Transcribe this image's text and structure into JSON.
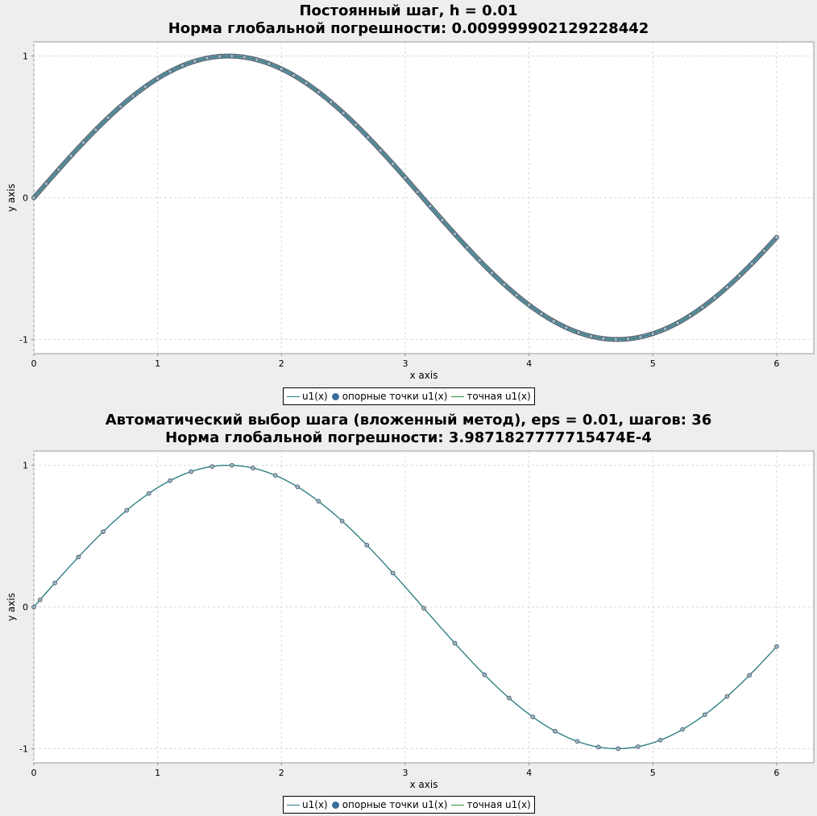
{
  "chart_data": [
    {
      "type": "line",
      "title": "Постоянный шаг, h = 0.01",
      "subtitle": "Норма глобальной погрешности: 0.009999902129228442",
      "xlabel": "x axis",
      "ylabel": "y axis",
      "xlim": [
        0,
        6.3
      ],
      "ylim": [
        -1.1,
        1.1
      ],
      "xticks": [
        0,
        1,
        2,
        3,
        4,
        5,
        6
      ],
      "yticks": [
        -1,
        0,
        1
      ],
      "grid": true,
      "legend_position": "bottom-center",
      "function": "sin(x)",
      "step": 0.01,
      "x_end": 6.0,
      "series": [
        {
          "name": "u1(x)",
          "kind": "line",
          "color": "#2a7a8a"
        },
        {
          "name": "опорные точки u1(x)",
          "kind": "markers",
          "color": "#3a6e9a"
        },
        {
          "name": "точная u1(x)",
          "kind": "line",
          "color": "#2e9a3a"
        }
      ]
    },
    {
      "type": "line",
      "title": "Автоматический выбор шага (вложенный метод), eps = 0.01, шагов: 36",
      "subtitle": "Норма глобальной погрешности: 3.9871827777715474E-4",
      "xlabel": "x axis",
      "ylabel": "y axis",
      "xlim": [
        0,
        6.3
      ],
      "ylim": [
        -1.1,
        1.1
      ],
      "xticks": [
        0,
        1,
        2,
        3,
        4,
        5,
        6
      ],
      "yticks": [
        -1,
        0,
        1
      ],
      "grid": true,
      "legend_position": "bottom-center",
      "function": "sin(x)",
      "points_x": [
        0,
        0.05,
        0.17,
        0.36,
        0.56,
        0.75,
        0.93,
        1.1,
        1.27,
        1.44,
        1.6,
        1.77,
        1.95,
        2.13,
        2.3,
        2.49,
        2.69,
        2.9,
        3.15,
        3.4,
        3.64,
        3.84,
        4.03,
        4.21,
        4.39,
        4.56,
        4.72,
        4.88,
        5.06,
        5.24,
        5.42,
        5.6,
        5.78,
        6.0
      ],
      "series": [
        {
          "name": "u1(x)",
          "kind": "line",
          "color": "#2a7a8a"
        },
        {
          "name": "опорные точки u1(x)",
          "kind": "markers",
          "color": "#3a6e9a"
        },
        {
          "name": "точная u1(x)",
          "kind": "line",
          "color": "#2e9a3a"
        }
      ]
    }
  ]
}
